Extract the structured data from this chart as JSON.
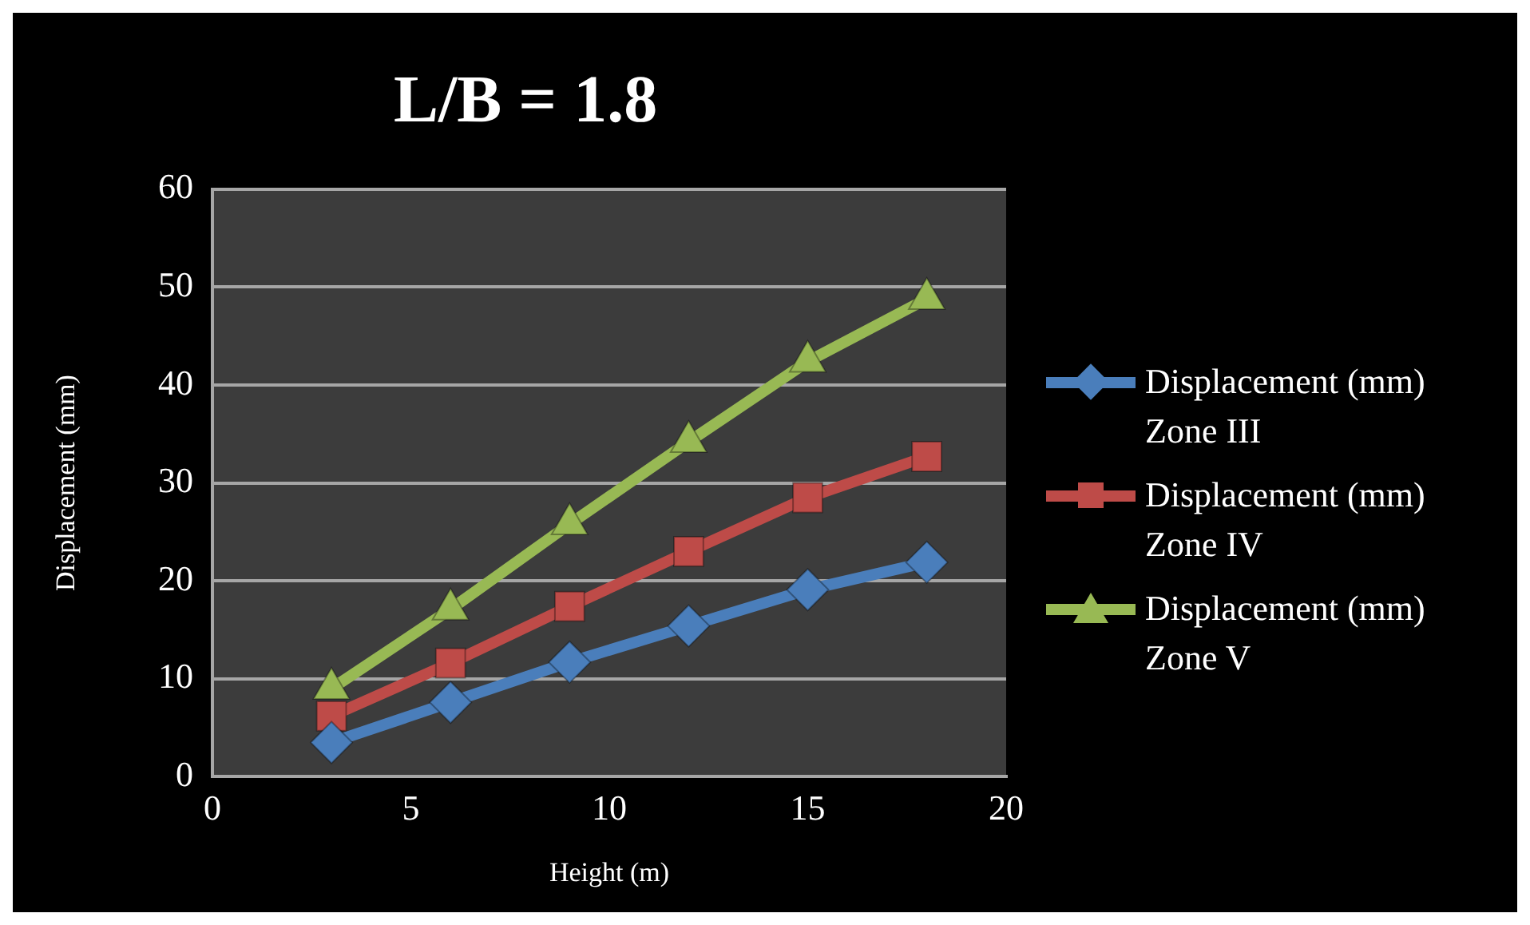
{
  "chart_data": {
    "type": "line",
    "title": "L/B = 1.8",
    "xlabel": "Height (m)",
    "ylabel": "Displacement (mm)",
    "x": [
      3,
      6,
      9,
      12,
      15,
      18
    ],
    "series": [
      {
        "name": "Displacement (mm) Zone III",
        "color": "#4a7ebb",
        "marker": "diamond",
        "values": [
          3.5,
          7.6,
          11.7,
          15.4,
          19.1,
          21.9
        ]
      },
      {
        "name": "Displacement (mm) Zone IV",
        "color": "#be4b48",
        "marker": "square",
        "values": [
          6.2,
          11.6,
          17.4,
          23.0,
          28.5,
          32.7
        ]
      },
      {
        "name": "Displacement (mm) Zone V",
        "color": "#98b954",
        "marker": "triangle",
        "values": [
          9.0,
          17.1,
          25.8,
          34.2,
          42.4,
          48.8
        ]
      }
    ],
    "xlim": [
      0,
      20
    ],
    "xticks": [
      0,
      5,
      10,
      15,
      20
    ],
    "ylim": [
      0,
      60
    ],
    "yticks": [
      0,
      10,
      20,
      30,
      40,
      50,
      60
    ],
    "grid": "y",
    "legend": "right",
    "line_style": "solid"
  }
}
